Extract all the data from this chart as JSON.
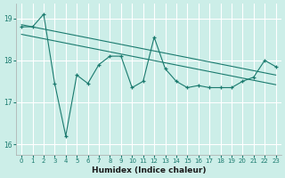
{
  "title": "",
  "xlabel": "Humidex (Indice chaleur)",
  "bg_color": "#cceee8",
  "line_color": "#1a7a6e",
  "grid_color": "#ffffff",
  "xlim": [
    -0.5,
    23.5
  ],
  "ylim": [
    15.75,
    19.35
  ],
  "yticks": [
    16,
    17,
    18,
    19
  ],
  "xticks": [
    0,
    1,
    2,
    3,
    4,
    5,
    6,
    7,
    8,
    9,
    10,
    11,
    12,
    13,
    14,
    15,
    16,
    17,
    18,
    19,
    20,
    21,
    22,
    23
  ],
  "series1_x": [
    0,
    1,
    2,
    3,
    4,
    5,
    6,
    7,
    8,
    9,
    10,
    11,
    12,
    13,
    14,
    15,
    16,
    17,
    18,
    19,
    20,
    21,
    22,
    23
  ],
  "series1_y": [
    18.8,
    18.8,
    19.1,
    17.45,
    16.2,
    17.65,
    17.45,
    17.9,
    18.1,
    18.1,
    17.35,
    17.5,
    18.55,
    17.8,
    17.5,
    17.35,
    17.4,
    17.35,
    17.35,
    17.35,
    17.5,
    17.6,
    18.0,
    17.85
  ],
  "trend1_x": [
    0,
    23
  ],
  "trend1_y": [
    18.85,
    17.65
  ],
  "trend2_x": [
    0,
    23
  ],
  "trend2_y": [
    18.62,
    17.42
  ]
}
